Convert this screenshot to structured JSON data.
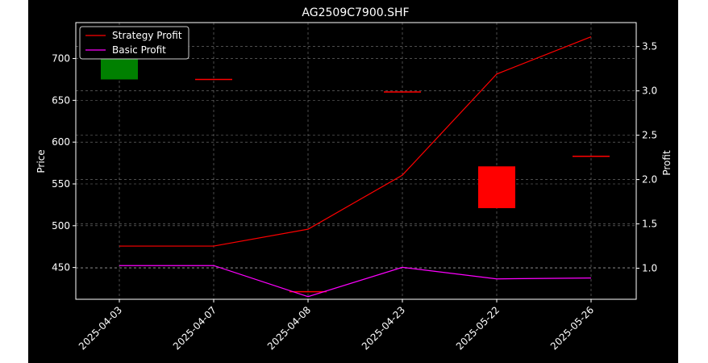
{
  "chart_data": {
    "type": "candlestick+line",
    "title": "AG2509C7900.SHF",
    "xlabel": "",
    "ylabel": "Price",
    "y2label": "Profit",
    "categories": [
      "2025-04-03",
      "2025-04-07",
      "2025-04-08",
      "2025-04-23",
      "2025-05-22",
      "2025-05-26"
    ],
    "ylim": [
      412,
      743
    ],
    "yticks": [
      450,
      500,
      550,
      600,
      650,
      700
    ],
    "y2lim": [
      0.65,
      3.77
    ],
    "y2ticks": [
      1.0,
      1.5,
      2.0,
      2.5,
      3.0,
      3.5
    ],
    "grid": true,
    "legend": {
      "placement": "top-left",
      "entries": [
        "Strategy Profit",
        "Basic Profit"
      ]
    },
    "candles": [
      {
        "date": "2025-04-03",
        "open": 675,
        "close": 730,
        "color": "#008000"
      },
      {
        "date": "2025-04-07",
        "open": 675,
        "close": 675,
        "color": "#ff0000"
      },
      {
        "date": "2025-04-08",
        "open": 421,
        "close": 421,
        "color": "#ff0000"
      },
      {
        "date": "2025-04-23",
        "open": 660,
        "close": 660,
        "color": "#ff0000"
      },
      {
        "date": "2025-05-22",
        "open": 571,
        "close": 521,
        "color": "#ff0000"
      },
      {
        "date": "2025-05-26",
        "open": 583,
        "close": 583,
        "color": "#ff0000"
      }
    ],
    "series": [
      {
        "name": "Strategy Profit",
        "axis": "right",
        "color": "#ff0000",
        "values": [
          1.25,
          1.25,
          1.44,
          2.05,
          3.19,
          3.61
        ]
      },
      {
        "name": "Basic Profit",
        "axis": "right",
        "color": "#ff00ff",
        "values": [
          1.03,
          1.03,
          0.68,
          1.01,
          0.88,
          0.89
        ]
      }
    ]
  },
  "colors": {
    "figure_background": "#000000",
    "plot_background": "#000000",
    "text": "#ffffff",
    "grid": "#b0b0b0"
  }
}
